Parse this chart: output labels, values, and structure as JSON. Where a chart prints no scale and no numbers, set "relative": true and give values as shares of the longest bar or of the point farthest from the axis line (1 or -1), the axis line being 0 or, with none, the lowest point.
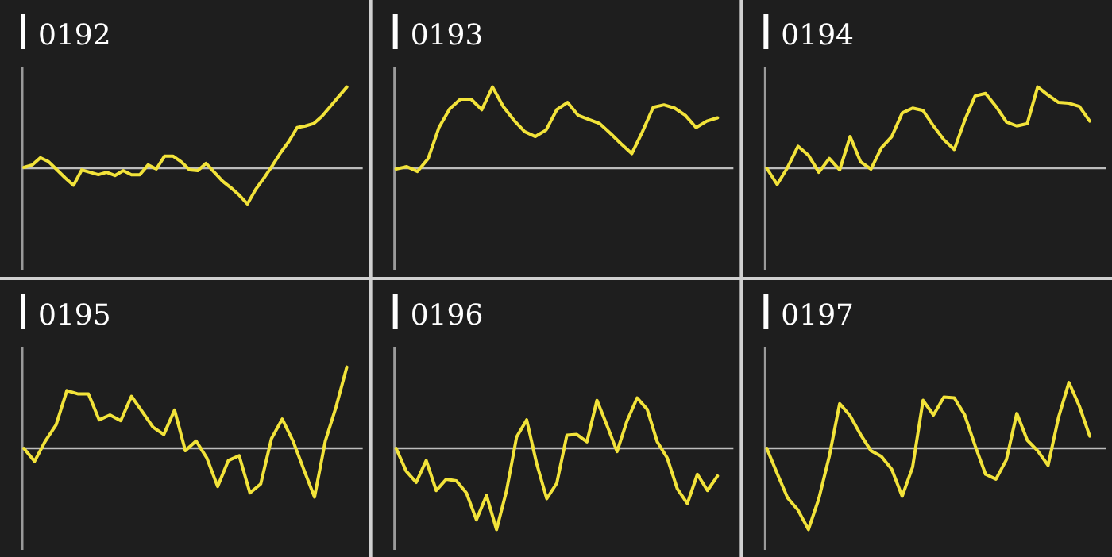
{
  "chart_data": [
    {
      "type": "line",
      "title": "0192",
      "relative": true,
      "categories": [
        null,
        null,
        null,
        null,
        null,
        null,
        null,
        null,
        null,
        null,
        null,
        null,
        null,
        null,
        null,
        null,
        null,
        null,
        null,
        null,
        null,
        null,
        null,
        null,
        null,
        null,
        null,
        null,
        null,
        null,
        null,
        null,
        null,
        null,
        null,
        null,
        null,
        null,
        null,
        null
      ],
      "series": [
        {
          "color": "#f2e33a",
          "values": [
            0.01,
            0.04,
            0.13,
            0.08,
            -0.02,
            -0.12,
            -0.21,
            -0.02,
            -0.05,
            -0.08,
            -0.05,
            -0.09,
            -0.03,
            -0.08,
            -0.08,
            0.04,
            -0.01,
            0.15,
            0.15,
            0.08,
            -0.02,
            -0.03,
            0.06,
            -0.05,
            -0.16,
            -0.24,
            -0.33,
            -0.44,
            -0.26,
            -0.12,
            0.03,
            0.19,
            0.33,
            0.5,
            0.52,
            0.55,
            0.64,
            0.76,
            0.88,
            1
          ]
        }
      ]
    },
    {
      "type": "line",
      "title": "0193",
      "relative": true,
      "categories": [
        null,
        null,
        null,
        null,
        null,
        null,
        null,
        null,
        null,
        null,
        null,
        null,
        null,
        null,
        null,
        null,
        null,
        null,
        null,
        null,
        null,
        null,
        null,
        null,
        null,
        null,
        null,
        null,
        null,
        null,
        null
      ],
      "series": [
        {
          "color": "#f2e33a",
          "values": [
            -0.01,
            0.02,
            -0.04,
            0.12,
            0.5,
            0.73,
            0.85,
            0.85,
            0.72,
            1,
            0.76,
            0.59,
            0.45,
            0.39,
            0.47,
            0.72,
            0.81,
            0.65,
            0.6,
            0.55,
            0.43,
            0.3,
            0.18,
            0.45,
            0.75,
            0.78,
            0.74,
            0.65,
            0.5,
            0.58,
            0.62
          ]
        }
      ]
    },
    {
      "type": "line",
      "title": "0194",
      "relative": true,
      "categories": [
        null,
        null,
        null,
        null,
        null,
        null,
        null,
        null,
        null,
        null,
        null,
        null,
        null,
        null,
        null,
        null,
        null,
        null,
        null,
        null,
        null,
        null,
        null,
        null,
        null,
        null,
        null,
        null,
        null,
        null,
        null,
        null
      ],
      "series": [
        {
          "color": "#f2e33a",
          "values": [
            0,
            -0.2,
            0.01,
            0.27,
            0.16,
            -0.05,
            0.12,
            -0.02,
            0.39,
            0.08,
            -0.01,
            0.25,
            0.39,
            0.68,
            0.74,
            0.71,
            0.52,
            0.35,
            0.23,
            0.59,
            0.89,
            0.92,
            0.76,
            0.57,
            0.52,
            0.55,
            1,
            0.9,
            0.81,
            0.8,
            0.76,
            0.58
          ]
        }
      ]
    },
    {
      "type": "line",
      "title": "0195",
      "relative": true,
      "categories": [
        null,
        null,
        null,
        null,
        null,
        null,
        null,
        null,
        null,
        null,
        null,
        null,
        null,
        null,
        null,
        null,
        null,
        null,
        null,
        null,
        null,
        null,
        null,
        null,
        null,
        null,
        null,
        null,
        null,
        null,
        null
      ],
      "series": [
        {
          "color": "#f2e33a",
          "values": [
            0,
            -0.16,
            0.09,
            0.29,
            0.71,
            0.67,
            0.67,
            0.35,
            0.41,
            0.34,
            0.64,
            0.45,
            0.26,
            0.17,
            0.47,
            -0.03,
            0.09,
            -0.12,
            -0.47,
            -0.15,
            -0.09,
            -0.55,
            -0.44,
            0.12,
            0.36,
            0.09,
            -0.26,
            -0.6,
            0.09,
            0.51,
            1
          ]
        }
      ]
    },
    {
      "type": "line",
      "title": "0196",
      "relative": true,
      "categories": [
        null,
        null,
        null,
        null,
        null,
        null,
        null,
        null,
        null,
        null,
        null,
        null,
        null,
        null,
        null,
        null,
        null,
        null,
        null,
        null,
        null,
        null,
        null,
        null,
        null,
        null,
        null,
        null,
        null,
        null,
        null,
        null,
        null
      ],
      "series": [
        {
          "color": "#f2e33a",
          "values": [
            0,
            -0.28,
            -0.42,
            -0.15,
            -0.52,
            -0.38,
            -0.4,
            -0.55,
            -0.88,
            -0.58,
            -1,
            -0.52,
            0.14,
            0.35,
            -0.19,
            -0.62,
            -0.43,
            0.16,
            0.17,
            0.08,
            0.59,
            0.28,
            -0.04,
            0.34,
            0.62,
            0.48,
            0.08,
            -0.12,
            -0.5,
            -0.68,
            -0.32,
            -0.52,
            -0.34
          ]
        }
      ]
    },
    {
      "type": "line",
      "title": "0197",
      "relative": true,
      "categories": [
        null,
        null,
        null,
        null,
        null,
        null,
        null,
        null,
        null,
        null,
        null,
        null,
        null,
        null,
        null,
        null,
        null,
        null,
        null,
        null,
        null,
        null,
        null,
        null,
        null,
        null,
        null,
        null,
        null,
        null,
        null,
        null
      ],
      "series": [
        {
          "color": "#f2e33a",
          "values": [
            0,
            -0.31,
            -0.61,
            -0.76,
            -1,
            -0.62,
            -0.1,
            0.55,
            0.4,
            0.17,
            -0.03,
            -0.1,
            -0.26,
            -0.59,
            -0.23,
            0.59,
            0.41,
            0.63,
            0.62,
            0.41,
            0.03,
            -0.32,
            -0.38,
            -0.14,
            0.43,
            0.1,
            -0.03,
            -0.21,
            0.38,
            0.81,
            0.52,
            0.15
          ]
        }
      ]
    }
  ]
}
